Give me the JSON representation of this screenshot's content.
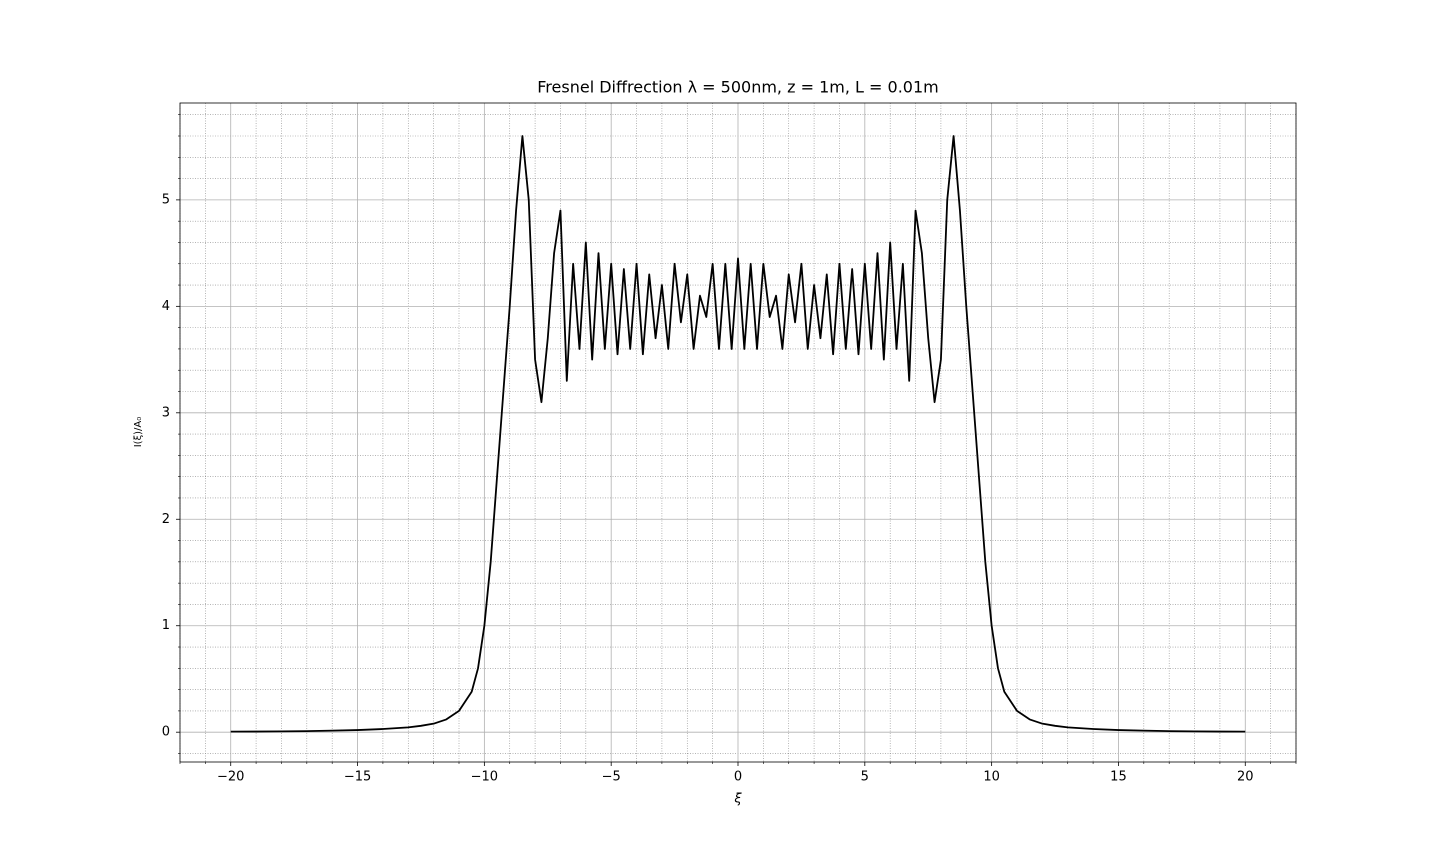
{
  "chart_data": {
    "type": "line",
    "title": "Fresnel Diffrection       λ = 500nm,    z = 1m,    L = 0.01m",
    "xlabel": "ξ",
    "ylabel": "I(ξ)/A₀",
    "color": "#000000",
    "x": [
      -20,
      -19,
      -18,
      -17,
      -16,
      -15,
      -14,
      -13,
      -12.5,
      -12,
      -11.5,
      -11,
      -10.5,
      -10.25,
      -10,
      -9.75,
      -9.5,
      -9.25,
      -9,
      -8.75,
      -8.5,
      -8.25,
      -8,
      -7.75,
      -7.5,
      -7.25,
      -7,
      -6.75,
      -6.5,
      -6.25,
      -6,
      -5.75,
      -5.5,
      -5.25,
      -5,
      -4.75,
      -4.5,
      -4.25,
      -4,
      -3.75,
      -3.5,
      -3.25,
      -3,
      -2.75,
      -2.5,
      -2.25,
      -2,
      -1.75,
      -1.5,
      -1.25,
      -1,
      -0.75,
      -0.5,
      -0.25,
      0,
      0.25,
      0.5,
      0.75,
      1,
      1.25,
      1.5,
      1.75,
      2,
      2.25,
      2.5,
      2.75,
      3,
      3.25,
      3.5,
      3.75,
      4,
      4.25,
      4.5,
      4.75,
      5,
      5.25,
      5.5,
      5.75,
      6,
      6.25,
      6.5,
      6.75,
      7,
      7.25,
      7.5,
      7.75,
      8,
      8.25,
      8.5,
      8.75,
      9,
      9.25,
      9.5,
      9.75,
      10,
      10.25,
      10.5,
      11,
      11.5,
      12,
      12.5,
      13,
      14,
      15,
      16,
      17,
      18,
      19,
      20
    ],
    "values": [
      0.005,
      0.006,
      0.008,
      0.01,
      0.015,
      0.02,
      0.03,
      0.045,
      0.06,
      0.08,
      0.12,
      0.2,
      0.38,
      0.6,
      1.0,
      1.6,
      2.4,
      3.2,
      4.0,
      4.9,
      5.6,
      5.0,
      3.5,
      3.1,
      3.7,
      4.5,
      4.9,
      3.3,
      4.4,
      3.6,
      4.6,
      3.5,
      4.5,
      3.6,
      4.4,
      3.55,
      4.35,
      3.6,
      4.4,
      3.55,
      4.3,
      3.7,
      4.2,
      3.6,
      4.4,
      3.85,
      4.3,
      3.6,
      4.1,
      3.9,
      4.4,
      3.6,
      4.4,
      3.6,
      4.45,
      3.6,
      4.4,
      3.6,
      4.4,
      3.9,
      4.1,
      3.6,
      4.3,
      3.85,
      4.4,
      3.6,
      4.2,
      3.7,
      4.3,
      3.55,
      4.4,
      3.6,
      4.35,
      3.55,
      4.4,
      3.6,
      4.5,
      3.5,
      4.6,
      3.6,
      4.4,
      3.3,
      4.9,
      4.5,
      3.7,
      3.1,
      3.5,
      5.0,
      5.6,
      4.9,
      4.0,
      3.2,
      2.4,
      1.6,
      1.0,
      0.6,
      0.38,
      0.2,
      0.12,
      0.08,
      0.06,
      0.045,
      0.03,
      0.02,
      0.015,
      0.01,
      0.008,
      0.006,
      0.005
    ],
    "xlim": [
      -22,
      22
    ],
    "ylim": [
      -0.28,
      5.91
    ],
    "xticks": [
      {
        "value": -20,
        "label": "−20"
      },
      {
        "value": -15,
        "label": "−15"
      },
      {
        "value": -10,
        "label": "−10"
      },
      {
        "value": -5,
        "label": "−5"
      },
      0,
      5,
      10,
      15,
      20
    ],
    "yticks": [
      0,
      1,
      2,
      3,
      4,
      5
    ],
    "xminorticks": [
      -22,
      -21,
      -19,
      -18,
      -17,
      -16,
      -14,
      -13,
      -12,
      -11,
      -9,
      -8,
      -7,
      -6,
      -4,
      -3,
      -2,
      -1,
      1,
      2,
      3,
      4,
      6,
      7,
      8,
      9,
      11,
      12,
      13,
      14,
      16,
      17,
      18,
      19,
      21,
      22
    ],
    "yminorticks": [
      -0.2,
      0.2,
      0.4,
      0.6,
      0.8,
      1.2,
      1.4,
      1.6,
      1.8,
      2.2,
      2.4,
      2.6,
      2.8,
      3.2,
      3.4,
      3.6,
      3.8,
      4.2,
      4.4,
      4.6,
      4.8,
      5.2,
      5.4,
      5.6,
      5.8
    ],
    "grid": true,
    "minor_grid": true
  }
}
